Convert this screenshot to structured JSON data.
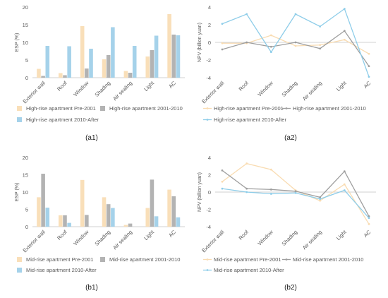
{
  "panel_labels": [
    "(a1)",
    "(a2)",
    "(b1)",
    "(b2)"
  ],
  "colors": {
    "series_bar": [
      "#f9dfb9",
      "#b3b3b3",
      "#a5d2ea"
    ],
    "series_line": [
      "#f9dcb2",
      "#9e9e9e",
      "#8ecde9"
    ],
    "axis": "#d0d0d0",
    "text": "#595959"
  },
  "chart_data": [
    {
      "id": "a1",
      "type": "bar",
      "ylabel": "ESP (%)",
      "ylim": [
        0,
        20
      ],
      "yticks": [
        0,
        5,
        10,
        15,
        20
      ],
      "categories": [
        "Exterior wall",
        "Roof",
        "Window",
        "Shading",
        "Air sealing",
        "Light",
        "AC"
      ],
      "series": [
        {
          "name": "High-rise apartment Pre-2001",
          "values": [
            2.5,
            1.3,
            14.6,
            5.2,
            1.9,
            6.0,
            18.0
          ]
        },
        {
          "name": "High-rise apartment 2001-2010",
          "values": [
            0.5,
            0.7,
            2.6,
            6.4,
            1.4,
            7.8,
            12.2
          ]
        },
        {
          "name": "High-rise apartment 2010-After",
          "values": [
            9.0,
            8.9,
            8.2,
            14.3,
            9.0,
            11.9,
            12.0
          ]
        }
      ]
    },
    {
      "id": "a2",
      "type": "line",
      "ylabel": "NPV (billion yuan)",
      "ylim": [
        -4,
        4
      ],
      "yticks": [
        -4,
        -2,
        0,
        2,
        4
      ],
      "categories": [
        "Exterior wall",
        "Roof",
        "Window",
        "Shading",
        "Air sealing",
        "Light",
        "AC"
      ],
      "series": [
        {
          "name": "High-rise apartment Pre-2001",
          "values": [
            -0.1,
            -0.1,
            0.8,
            -0.4,
            -0.3,
            0.3,
            -1.3
          ]
        },
        {
          "name": "High-rise apartment 2001-2010",
          "values": [
            -0.8,
            0.0,
            -0.5,
            0.0,
            -0.7,
            1.3,
            -2.7
          ]
        },
        {
          "name": "High-rise apartment 2010-After",
          "values": [
            2.1,
            3.2,
            -1.1,
            3.2,
            1.8,
            3.8,
            -3.9
          ]
        }
      ]
    },
    {
      "id": "b1",
      "type": "bar",
      "ylabel": "ESP (%)",
      "ylim": [
        0,
        20
      ],
      "yticks": [
        0,
        5,
        10,
        15,
        20
      ],
      "categories": [
        "Exterior wall",
        "Roof",
        "Window",
        "Shading",
        "Air sealing",
        "Light",
        "AC"
      ],
      "series": [
        {
          "name": "Mid-rise apartment Pre-2001",
          "values": [
            8.5,
            3.3,
            13.5,
            8.5,
            0.5,
            5.4,
            10.7
          ]
        },
        {
          "name": "Mid-rise apartment 2001-2010",
          "values": [
            15.3,
            3.3,
            3.4,
            6.5,
            0.9,
            13.6,
            8.8
          ]
        },
        {
          "name": "Mid-rise apartment 2010-After",
          "values": [
            5.5,
            1.1,
            0.0,
            5.4,
            0.0,
            3.0,
            2.7
          ]
        }
      ]
    },
    {
      "id": "b2",
      "type": "line",
      "ylabel": "NPV (billion yuan)",
      "ylim": [
        -4,
        4
      ],
      "yticks": [
        -4,
        -2,
        0,
        2,
        4
      ],
      "categories": [
        "Exterior wall",
        "Roof",
        "Window",
        "Shading",
        "Air sealing",
        "Light",
        "AC"
      ],
      "series": [
        {
          "name": "Mid-rise apartment Pre-2001",
          "values": [
            1.2,
            3.3,
            2.6,
            0.2,
            -1.0,
            0.9,
            -3.7
          ]
        },
        {
          "name": "Mid-rise apartment 2001-2010",
          "values": [
            2.5,
            0.4,
            0.3,
            0.1,
            -0.6,
            2.4,
            -2.8
          ]
        },
        {
          "name": "Mid-rise apartment 2010-After",
          "values": [
            0.4,
            0.0,
            -0.2,
            -0.1,
            -0.8,
            0.2,
            -3.0
          ]
        }
      ]
    }
  ]
}
